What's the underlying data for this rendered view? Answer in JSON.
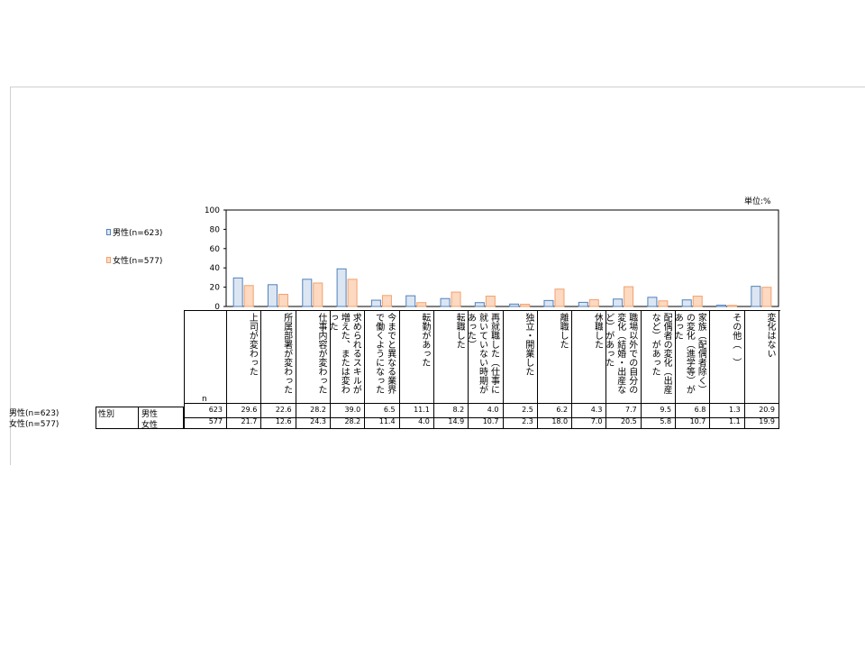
{
  "unit": "単位:%",
  "legend": {
    "male": {
      "label": "男性(n=623)",
      "color": "#4F81BD"
    },
    "female": {
      "label": "女性(n=577)",
      "color": "#F2A16E"
    }
  },
  "table": {
    "n_header": "n",
    "group_label": "性別",
    "rows": [
      {
        "side_label": "男性(n=623)",
        "sub_label": "男性",
        "n": "623",
        "values": [
          "29.6",
          "22.6",
          "28.2",
          "39.0",
          "6.5",
          "11.1",
          "8.2",
          "4.0",
          "2.5",
          "6.2",
          "4.3",
          "7.7",
          "9.5",
          "6.8",
          "1.3",
          "20.9"
        ]
      },
      {
        "side_label": "女性(n=577)",
        "sub_label": "女性",
        "n": "577",
        "values": [
          "21.7",
          "12.6",
          "24.3",
          "28.2",
          "11.4",
          "4.0",
          "14.9",
          "10.7",
          "2.3",
          "18.0",
          "7.0",
          "20.5",
          "5.8",
          "10.7",
          "1.1",
          "19.9"
        ]
      }
    ]
  },
  "chart_data": {
    "type": "bar",
    "ylim": [
      0,
      100
    ],
    "yticks": [
      "0",
      "20",
      "40",
      "60",
      "80",
      "100"
    ],
    "categories": [
      "上司が変わった",
      "所属部署が変わった",
      "仕事内容が変わった",
      "求められるスキルが増えた、または変わった",
      "今までと異なる業界で働くようになった",
      "転勤があった",
      "転職した",
      "再就職した（仕事に就いていない時期があった）",
      "独立・開業した",
      "離職した",
      "休職した",
      "職場以外での自分の変化（結婚・出産など）があった",
      "配偶者の変化（出産など）があった",
      "家族（配偶者除く）の変化（進学等）があった",
      "その他（　）",
      "変化はない"
    ],
    "series": [
      {
        "name": "男性(n=623)",
        "values": [
          29.6,
          22.6,
          28.2,
          39.0,
          6.5,
          11.1,
          8.2,
          4.0,
          2.5,
          6.2,
          4.3,
          7.7,
          9.5,
          6.8,
          1.3,
          20.9
        ]
      },
      {
        "name": "女性(n=577)",
        "values": [
          21.7,
          12.6,
          24.3,
          28.2,
          11.4,
          4.0,
          14.9,
          10.7,
          2.3,
          18.0,
          7.0,
          20.5,
          5.8,
          10.7,
          1.1,
          19.9
        ]
      }
    ]
  }
}
